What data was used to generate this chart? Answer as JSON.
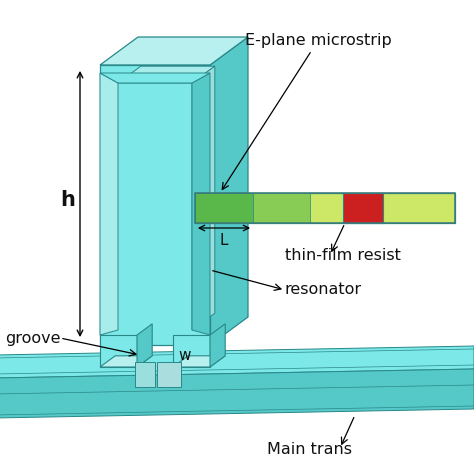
{
  "bg_color": "#ffffff",
  "cyan_face": "#7de8e8",
  "cyan_top": "#b8f0f0",
  "cyan_side": "#55c8c8",
  "cyan_dark": "#3aabab",
  "cyan_groove": "#9adede",
  "cyan_inner": "#a8ecec",
  "green_light": "#cce866",
  "green_mid": "#5ab84a",
  "red_block": "#cc2020",
  "border": "#2a8888",
  "text_color": "#111111",
  "label_h": "h",
  "label_L": "L",
  "label_w": "w",
  "label_groove": "groove",
  "label_eplane": "E-plane microstrip",
  "label_thinfilm": "thin-film resist",
  "label_resonator": "resonator",
  "label_main": "Main trans"
}
